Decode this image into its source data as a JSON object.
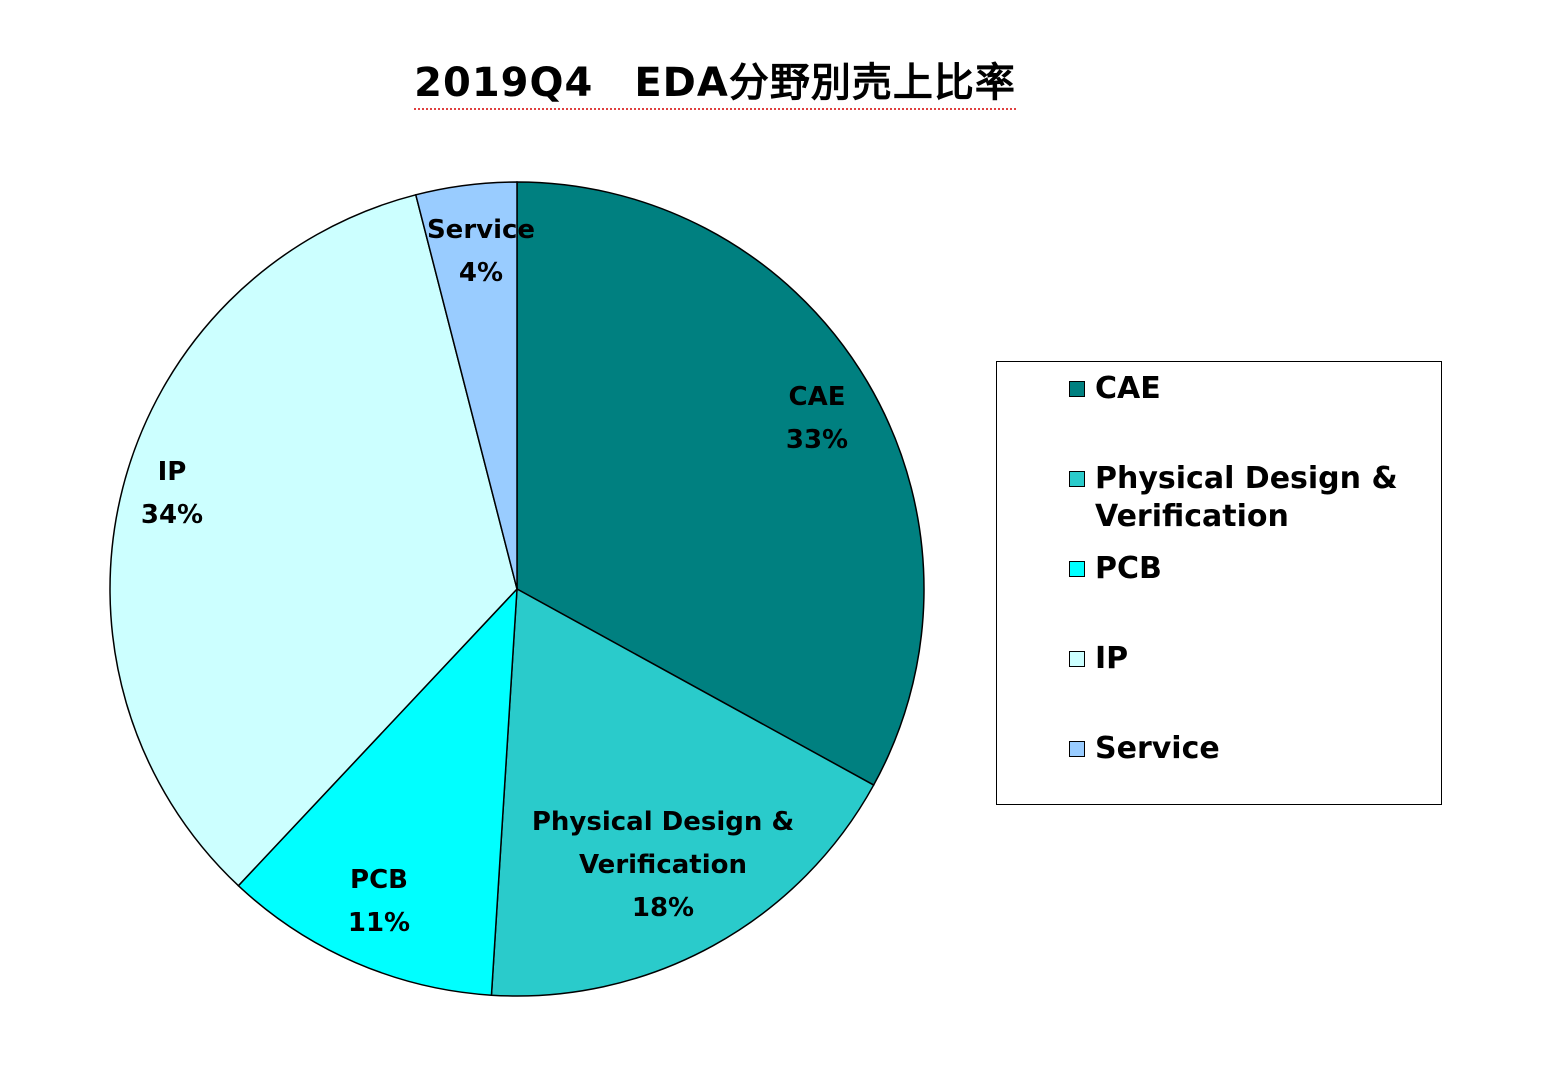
{
  "chart_data": {
    "type": "pie",
    "title": "2019Q4　EDA分野別売上比率",
    "slices": [
      {
        "label": "CAE",
        "value": 33,
        "value_label": "33%",
        "color": "#008080",
        "label_lines": [
          "CAE"
        ]
      },
      {
        "label": "Physical Design & Verification",
        "value": 18,
        "value_label": "18%",
        "color": "#2ACBCB",
        "label_lines": [
          "Physical Design &",
          "Verification"
        ]
      },
      {
        "label": "PCB",
        "value": 11,
        "value_label": "11%",
        "color": "#00FFFF",
        "label_lines": [
          "PCB"
        ]
      },
      {
        "label": "IP",
        "value": 34,
        "value_label": "34%",
        "color": "#CCFFFF",
        "label_lines": [
          "IP"
        ]
      },
      {
        "label": "Service",
        "value": 4,
        "value_label": "4%",
        "color": "#99CCFF",
        "label_lines": [
          "Service"
        ]
      }
    ],
    "start_angle": "12 o'clock",
    "direction": "clockwise",
    "legend_position": "right",
    "legend": [
      {
        "label_lines": [
          "CAE"
        ],
        "color": "#008080"
      },
      {
        "label_lines": [
          "Physical Design &",
          "Verification"
        ],
        "color": "#2ACBCB"
      },
      {
        "label_lines": [
          "PCB"
        ],
        "color": "#00FFFF"
      },
      {
        "label_lines": [
          "IP"
        ],
        "color": "#CCFFFF"
      },
      {
        "label_lines": [
          "Service"
        ],
        "color": "#99CCFF"
      }
    ]
  }
}
